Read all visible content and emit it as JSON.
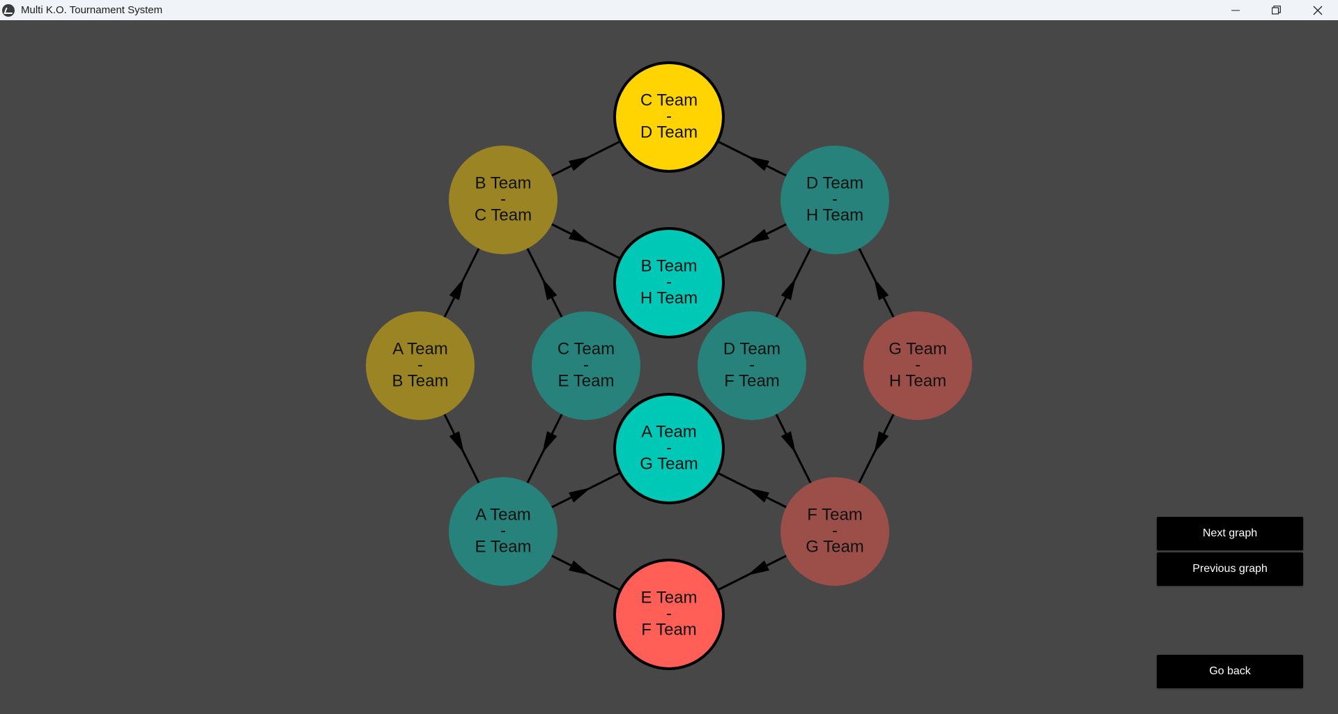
{
  "window": {
    "title": "Multi K.O. Tournament System",
    "minimize_icon": "minimize-icon",
    "restore_icon": "restore-icon",
    "close_icon": "close-icon"
  },
  "graph": {
    "nodes": [
      {
        "id": "cd",
        "line1": "C Team",
        "sep": "-",
        "line2": "D Team",
        "color": "#ffd400",
        "outlined": true
      },
      {
        "id": "bc",
        "line1": "B Team",
        "sep": "-",
        "line2": "C Team",
        "color": "#9a8424",
        "outlined": false
      },
      {
        "id": "dh",
        "line1": "D Team",
        "sep": "-",
        "line2": "H Team",
        "color": "#26827a",
        "outlined": false
      },
      {
        "id": "bh",
        "line1": "B Team",
        "sep": "-",
        "line2": "H Team",
        "color": "#00c8b6",
        "outlined": true
      },
      {
        "id": "ab",
        "line1": "A Team",
        "sep": "-",
        "line2": "B Team",
        "color": "#9a8424",
        "outlined": false
      },
      {
        "id": "ce",
        "line1": "C Team",
        "sep": "-",
        "line2": "E Team",
        "color": "#26827a",
        "outlined": false
      },
      {
        "id": "df",
        "line1": "D Team",
        "sep": "-",
        "line2": "F Team",
        "color": "#26827a",
        "outlined": false
      },
      {
        "id": "gh",
        "line1": "G Team",
        "sep": "-",
        "line2": "H Team",
        "color": "#9c4e49",
        "outlined": false
      },
      {
        "id": "ag",
        "line1": "A Team",
        "sep": "-",
        "line2": "G Team",
        "color": "#00c8b6",
        "outlined": true
      },
      {
        "id": "ae",
        "line1": "A Team",
        "sep": "-",
        "line2": "E Team",
        "color": "#26827a",
        "outlined": false
      },
      {
        "id": "fg",
        "line1": "F Team",
        "sep": "-",
        "line2": "G Team",
        "color": "#9c4e49",
        "outlined": false
      },
      {
        "id": "ef",
        "line1": "E Team",
        "sep": "-",
        "line2": "F Team",
        "color": "#ff5f57",
        "outlined": true
      }
    ],
    "edges": [
      {
        "from": "bc",
        "to": "cd"
      },
      {
        "from": "dh",
        "to": "cd"
      },
      {
        "from": "bc",
        "to": "bh"
      },
      {
        "from": "dh",
        "to": "bh"
      },
      {
        "from": "ab",
        "to": "bc"
      },
      {
        "from": "ce",
        "to": "bc"
      },
      {
        "from": "df",
        "to": "dh"
      },
      {
        "from": "gh",
        "to": "dh"
      },
      {
        "from": "ab",
        "to": "ae"
      },
      {
        "from": "ce",
        "to": "ae"
      },
      {
        "from": "df",
        "to": "fg"
      },
      {
        "from": "gh",
        "to": "fg"
      },
      {
        "from": "ae",
        "to": "ag"
      },
      {
        "from": "fg",
        "to": "ag"
      },
      {
        "from": "ae",
        "to": "ef"
      },
      {
        "from": "fg",
        "to": "ef"
      }
    ]
  },
  "buttons": {
    "next_graph": "Next graph",
    "previous_graph": "Previous graph",
    "go_back": "Go back"
  }
}
